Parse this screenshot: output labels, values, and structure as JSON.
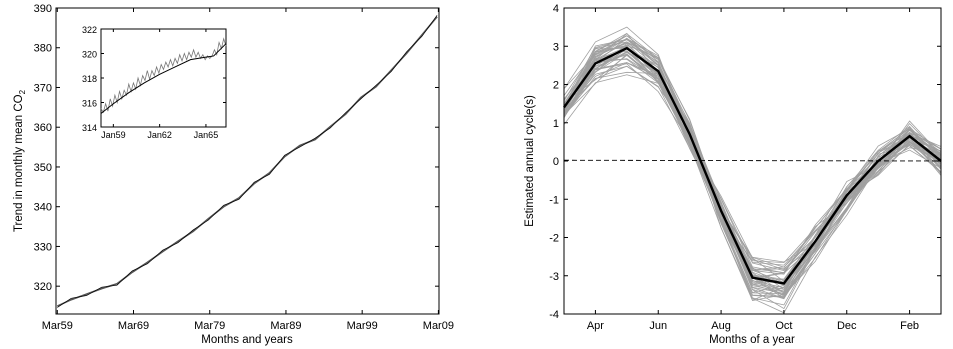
{
  "chart_data": [
    {
      "type": "line",
      "xlabel": "Months and years",
      "ylabel": "Trend in monthly mean CO",
      "ylabel_sub": "2",
      "xlim": [
        1959.0,
        2009.25
      ],
      "ylim": [
        313,
        390
      ],
      "xticks": [
        {
          "value": 1959.17,
          "label": "Mar59"
        },
        {
          "value": 1969.17,
          "label": "Mar69"
        },
        {
          "value": 1979.17,
          "label": "Mar79"
        },
        {
          "value": 1989.17,
          "label": "Mar89"
        },
        {
          "value": 1999.17,
          "label": "Mar99"
        },
        {
          "value": 2009.17,
          "label": "Mar09"
        }
      ],
      "yticks": [
        320,
        330,
        340,
        350,
        360,
        370,
        380,
        390
      ],
      "series": [
        {
          "x": [
            1959.17,
            1961.0,
            1963.0,
            1965.0,
            1967.0,
            1969.0,
            1971.0,
            1973.0,
            1975.0,
            1977.0,
            1979.0,
            1981.0,
            1983.0,
            1985.0,
            1987.0,
            1989.0,
            1991.0,
            1993.0,
            1995.0,
            1997.0,
            1999.0,
            2001.0,
            2003.0,
            2005.0,
            2007.0,
            2009.0
          ],
          "values": [
            315.0,
            316.6,
            318.0,
            319.4,
            320.6,
            323.5,
            326.0,
            328.7,
            331.3,
            333.8,
            337.0,
            340.0,
            342.2,
            345.8,
            348.5,
            352.6,
            355.4,
            356.9,
            360.2,
            363.3,
            367.5,
            370.2,
            374.4,
            378.6,
            383.2,
            387.8
          ]
        }
      ],
      "inset": {
        "xlim": [
          1958.2,
          1966.3
        ],
        "ylim": [
          314,
          322
        ],
        "xticks": [
          {
            "value": 1959.0,
            "label": "Jan59"
          },
          {
            "value": 1962.0,
            "label": "Jan62"
          },
          {
            "value": 1965.0,
            "label": "Jan65"
          }
        ],
        "yticks": [
          314,
          316,
          318,
          320,
          322
        ],
        "trend": {
          "x": [
            1958.2,
            1959.0,
            1960.0,
            1961.0,
            1962.0,
            1963.0,
            1964.0,
            1965.0,
            1965.5,
            1966.3
          ],
          "values": [
            315.1,
            315.9,
            316.8,
            317.6,
            318.3,
            318.9,
            319.5,
            319.7,
            319.8,
            320.8
          ]
        },
        "noisy": {
          "x": [
            1958.2,
            1958.35,
            1958.5,
            1958.65,
            1958.8,
            1958.95,
            1959.1,
            1959.25,
            1959.4,
            1959.55,
            1959.7,
            1959.85,
            1960.0,
            1960.15,
            1960.3,
            1960.45,
            1960.6,
            1960.75,
            1960.9,
            1961.05,
            1961.2,
            1961.35,
            1961.5,
            1961.65,
            1961.8,
            1961.95,
            1962.1,
            1962.25,
            1962.4,
            1962.55,
            1962.7,
            1962.85,
            1963.0,
            1963.15,
            1963.3,
            1963.45,
            1963.6,
            1963.75,
            1963.9,
            1964.05,
            1964.2,
            1964.35,
            1964.5,
            1964.65,
            1964.8,
            1964.95,
            1965.1,
            1965.25,
            1965.4,
            1965.55,
            1965.7,
            1965.85,
            1966.0,
            1966.15,
            1966.3
          ],
          "values": [
            315.5,
            315.2,
            315.9,
            315.3,
            316.3,
            315.7,
            316.6,
            316.0,
            316.9,
            316.3,
            317.0,
            316.6,
            317.5,
            316.9,
            317.6,
            317.1,
            318.0,
            317.4,
            318.2,
            317.8,
            318.6,
            317.9,
            318.6,
            318.2,
            318.9,
            318.4,
            319.1,
            318.7,
            319.3,
            318.9,
            319.5,
            319.0,
            319.6,
            319.2,
            319.9,
            319.4,
            320.0,
            319.5,
            320.1,
            319.7,
            320.3,
            319.7,
            320.1,
            319.6,
            319.9,
            319.5,
            319.8,
            319.6,
            319.8,
            320.3,
            319.9,
            320.9,
            320.4,
            321.2,
            320.6
          ]
        }
      }
    },
    {
      "type": "line",
      "xlabel": "Months of a year",
      "ylabel": "Estimated annual cycle(s)",
      "xlim": [
        2,
        14
      ],
      "ylim": [
        -4,
        4
      ],
      "xticks": [
        {
          "value": 3,
          "label": "Apr"
        },
        {
          "value": 5,
          "label": "Jun"
        },
        {
          "value": 7,
          "label": "Aug"
        },
        {
          "value": 9,
          "label": "Oct"
        },
        {
          "value": 11,
          "label": "Dec"
        },
        {
          "value": 13,
          "label": "Feb"
        }
      ],
      "yticks": [
        -4,
        -3,
        -2,
        -1,
        0,
        1,
        2,
        3,
        4
      ],
      "mean_series": {
        "x": [
          2,
          3,
          4,
          5,
          6,
          7,
          8,
          9,
          10,
          11,
          12,
          13,
          14
        ],
        "values": [
          1.4,
          2.55,
          2.95,
          2.35,
          0.7,
          -1.3,
          -3.05,
          -3.2,
          -2.1,
          -0.9,
          0.0,
          0.65,
          0
        ]
      },
      "zero_line": {
        "x": [
          2,
          14
        ],
        "values": [
          0.02,
          0.0
        ]
      },
      "colors": {
        "individual": "#a0a0a0",
        "mean": "#000000"
      }
    }
  ]
}
